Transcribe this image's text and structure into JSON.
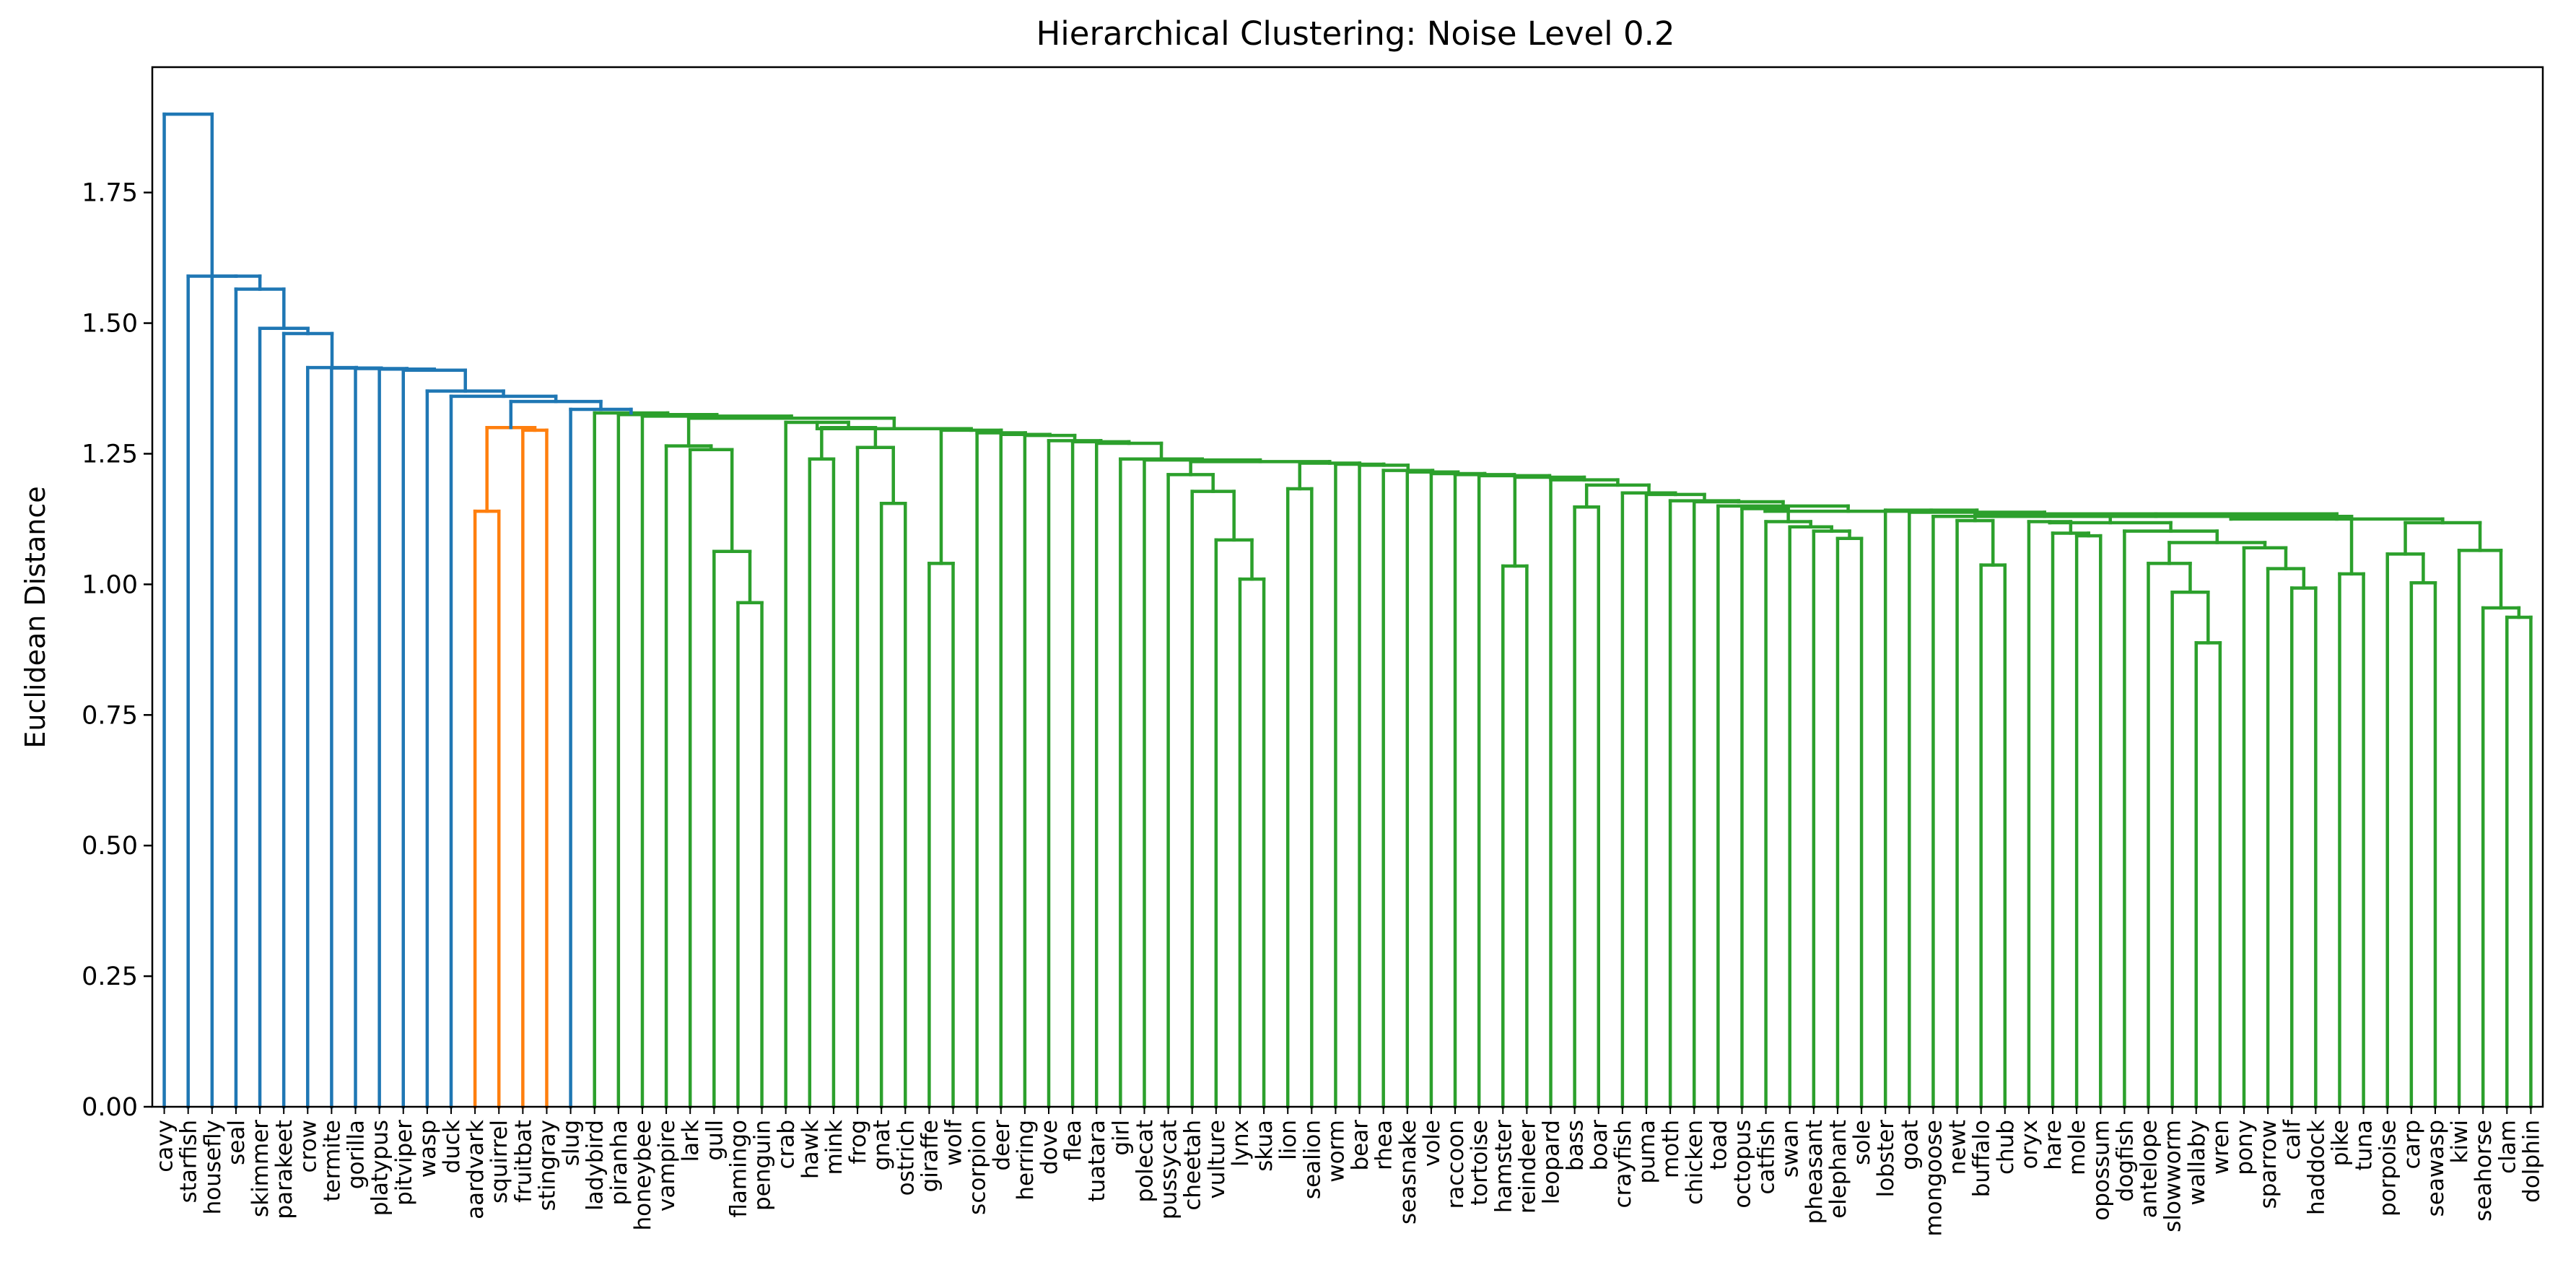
{
  "chart_data": {
    "type": "dendrogram",
    "title": "Hierarchical Clustering: Noise Level 0.2",
    "ylabel": "Euclidean Distance",
    "xlabel": "",
    "ylim": [
      0,
      1.99
    ],
    "yticks": [
      "0.00",
      "0.25",
      "0.50",
      "0.75",
      "1.00",
      "1.25",
      "1.50",
      "1.75"
    ],
    "grid": false,
    "colors": {
      "blue": "#1f77b4",
      "orange": "#ff7f0e",
      "green": "#2ca02c"
    },
    "leaves": [
      "cavy",
      "starfish",
      "housefly",
      "seal",
      "skimmer",
      "parakeet",
      "crow",
      "termite",
      "gorilla",
      "platypus",
      "pitviper",
      "wasp",
      "duck",
      "aardvark",
      "squirrel",
      "fruitbat",
      "stingray",
      "slug",
      "ladybird",
      "piranha",
      "honeybee",
      "vampire",
      "lark",
      "gull",
      "flamingo",
      "penguin",
      "crab",
      "hawk",
      "mink",
      "frog",
      "gnat",
      "ostrich",
      "giraffe",
      "wolf",
      "scorpion",
      "deer",
      "herring",
      "dove",
      "flea",
      "tuatara",
      "girl",
      "polecat",
      "pussycat",
      "cheetah",
      "vulture",
      "lynx",
      "skua",
      "lion",
      "sealion",
      "worm",
      "bear",
      "rhea",
      "seasnake",
      "vole",
      "raccoon",
      "tortoise",
      "hamster",
      "reindeer",
      "leopard",
      "bass",
      "boar",
      "crayfish",
      "puma",
      "moth",
      "chicken",
      "toad",
      "octopus",
      "catfish",
      "swan",
      "pheasant",
      "elephant",
      "sole",
      "lobster",
      "goat",
      "mongoose",
      "newt",
      "buffalo",
      "chub",
      "oryx",
      "hare",
      "mole",
      "opossum",
      "dogfish",
      "antelope",
      "slowworm",
      "wallaby",
      "wren",
      "pony",
      "sparrow",
      "calf",
      "haddock",
      "pike",
      "tuna",
      "porpoise",
      "carp",
      "seawasp",
      "kiwi",
      "seahorse",
      "clam",
      "dolphin"
    ],
    "merges": [
      {
        "a": "leaf:aardvark",
        "b": "leaf:squirrel",
        "h": 1.14,
        "color": "orange"
      },
      {
        "a": "leaf:fruitbat",
        "b": "leaf:stingray",
        "h": 1.295,
        "color": "orange"
      },
      {
        "a": "m:0",
        "b": "m:1",
        "h": 1.3,
        "color": "orange"
      },
      {
        "a": "leaf:flamingo",
        "b": "leaf:penguin",
        "h": 0.965,
        "color": "green"
      },
      {
        "a": "leaf:gull",
        "b": "m:3",
        "h": 1.063,
        "color": "green"
      },
      {
        "a": "leaf:lark",
        "b": "m:4",
        "h": 1.258,
        "color": "green"
      },
      {
        "a": "leaf:vampire",
        "b": "m:5",
        "h": 1.265,
        "color": "green"
      },
      {
        "a": "leaf:mink",
        "b": "leaf:frog",
        "h": 1.24,
        "color": "green"
      },
      {
        "a": "leaf:hawk",
        "b": "m:7",
        "h": 1.305,
        "color": "green"
      },
      {
        "a": "leaf:ostrich",
        "b": "leaf:giraffe",
        "h": 1.155,
        "color": "green"
      },
      {
        "a": "leaf:gnat",
        "b": "m:9",
        "h": 1.262,
        "color": "green"
      },
      {
        "a": "m:8",
        "b": "m:10",
        "h": 1.298,
        "color": "green"
      },
      {
        "a": "leaf:crab",
        "b": "m:11",
        "h": 1.31,
        "color": "green"
      },
      {
        "a": "leaf:wolf",
        "b": "leaf:scorpion",
        "h": 1.04,
        "color": "green"
      },
      {
        "a": "m:12",
        "b": "m:13",
        "h": 1.295,
        "color": "green"
      },
      {
        "a": "m:14",
        "b": "leaf:deer",
        "h": 1.288,
        "color": "green"
      },
      {
        "a": "m:15",
        "b": "leaf:herring",
        "h": 1.285,
        "color": "green"
      },
      {
        "a": "leaf:vulture",
        "b": "leaf:lynx",
        "h": 1.178,
        "color": "green"
      },
      {
        "a": "leaf:skua",
        "b": "leaf:lion",
        "h": 1.01,
        "color": "green"
      },
      {
        "a": "m:17",
        "b": "m:18",
        "h": 1.085,
        "color": "green"
      },
      {
        "a": "leaf:cheetah",
        "b": "m:19",
        "h": 1.21,
        "color": "green"
      },
      {
        "a": "leaf:pussycat",
        "b": "m:20",
        "h": 1.235,
        "color": "green"
      },
      {
        "a": "leaf:polecat",
        "b": "m:21",
        "h": 1.238,
        "color": "green"
      },
      {
        "a": "leaf:sealion",
        "b": "leaf:worm",
        "h": 1.183,
        "color": "green"
      },
      {
        "a": "leaf:chicken",
        "b": "leaf:toad",
        "h": 1.035,
        "color": "green"
      },
      {
        "a": "leaf:octopus",
        "b": "leaf:catfish",
        "h": 1.148,
        "color": "green"
      },
      {
        "a": "leaf:elephant",
        "b": "leaf:sole",
        "h": 1.088,
        "color": "green"
      },
      {
        "a": "leaf:pheasant",
        "b": "m:26",
        "h": 1.102,
        "color": "green"
      },
      {
        "a": "leaf:swan",
        "b": "m:27",
        "h": 1.11,
        "color": "green"
      },
      {
        "a": "leaf:catfish2",
        "b": "m:28",
        "h": 1.12,
        "color": "green"
      },
      {
        "a": "leaf:newt",
        "b": "leaf:buffalo",
        "h": 1.037,
        "color": "green"
      },
      {
        "a": "leaf:mole",
        "b": "leaf:opossum",
        "h": 1.093,
        "color": "green"
      },
      {
        "a": "leaf:hare",
        "b": "m:31",
        "h": 1.098,
        "color": "green"
      },
      {
        "a": "leaf:pony",
        "b": "leaf:sparrow",
        "h": 0.888,
        "color": "green"
      },
      {
        "a": "leaf:wren",
        "b": "m:33",
        "h": 0.985,
        "color": "green"
      },
      {
        "a": "leaf:wallaby",
        "b": "m:34",
        "h": 1.04,
        "color": "green"
      },
      {
        "a": "leaf:haddock",
        "b": "leaf:pike",
        "h": 0.993,
        "color": "green"
      },
      {
        "a": "leaf:calf",
        "b": "m:36",
        "h": 1.03,
        "color": "green"
      },
      {
        "a": "m:37",
        "b": "leaf:tuna",
        "h": 1.07,
        "color": "green"
      },
      {
        "a": "m:35",
        "b": "m:38",
        "h": 1.08,
        "color": "green"
      },
      {
        "a": "leaf:porpoise",
        "b": "leaf:carp",
        "h": 1.02,
        "color": "green"
      },
      {
        "a": "leaf:seawasp",
        "b": "leaf:kiwi",
        "h": 1.003,
        "color": "green"
      },
      {
        "a": "leaf:clam",
        "b": "leaf:dolphin",
        "h": 0.937,
        "color": "green"
      },
      {
        "a": "leaf:seahorse",
        "b": "m:42",
        "h": 0.955,
        "color": "green"
      },
      {
        "a": "m:43",
        "b": "leaf:seahorse2",
        "h": 1.065,
        "color": "green"
      },
      {
        "a": "cavy",
        "b": "rest",
        "h": 1.9,
        "color": "blue"
      },
      {
        "a": "starfish",
        "b": "rest",
        "h": 1.59,
        "color": "blue"
      },
      {
        "a": "housefly",
        "b": "rest",
        "h": 1.57,
        "color": "blue"
      },
      {
        "a": "seal",
        "b": "rest",
        "h": 1.49,
        "color": "blue"
      },
      {
        "a": "skimmer",
        "b": "rest",
        "h": 1.48,
        "color": "blue"
      },
      {
        "a": "parakeet",
        "b": "rest",
        "h": 1.415,
        "color": "blue"
      },
      {
        "a": "wasp",
        "b": "rest",
        "h": 1.37,
        "color": "blue"
      },
      {
        "a": "duck",
        "b": "rest",
        "h": 1.36,
        "color": "blue"
      },
      {
        "a": "slug",
        "b": "rest",
        "h": 1.335,
        "color": "blue"
      }
    ]
  }
}
